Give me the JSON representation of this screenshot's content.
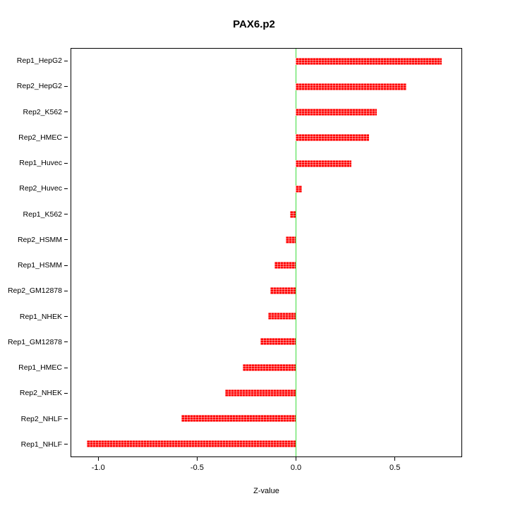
{
  "chart_data": {
    "type": "bar",
    "orientation": "horizontal",
    "title": "PAX6.p2",
    "xlabel": "Z-value",
    "ylabel": "",
    "categories": [
      "Rep1_HepG2",
      "Rep2_HepG2",
      "Rep2_K562",
      "Rep2_HMEC",
      "Rep1_Huvec",
      "Rep2_Huvec",
      "Rep1_K562",
      "Rep2_HSMM",
      "Rep1_HSMM",
      "Rep2_GM12878",
      "Rep1_NHEK",
      "Rep1_GM12878",
      "Rep1_HMEC",
      "Rep2_NHEK",
      "Rep2_NHLF",
      "Rep1_NHLF"
    ],
    "values": [
      0.74,
      0.56,
      0.41,
      0.37,
      0.28,
      0.03,
      -0.03,
      -0.05,
      -0.11,
      -0.13,
      -0.14,
      -0.18,
      -0.27,
      -0.36,
      -0.58,
      -1.06
    ],
    "xlim": [
      -1.14,
      0.84
    ],
    "xtick_values": [
      -1.0,
      -0.5,
      0.0,
      0.5
    ],
    "xtick_labels": [
      "-1.0",
      "-0.5",
      "0.0",
      "0.5"
    ],
    "bar_color": "#ff0000",
    "zero_line_color": "#3ddd3d",
    "grid": false,
    "legend": "none"
  }
}
